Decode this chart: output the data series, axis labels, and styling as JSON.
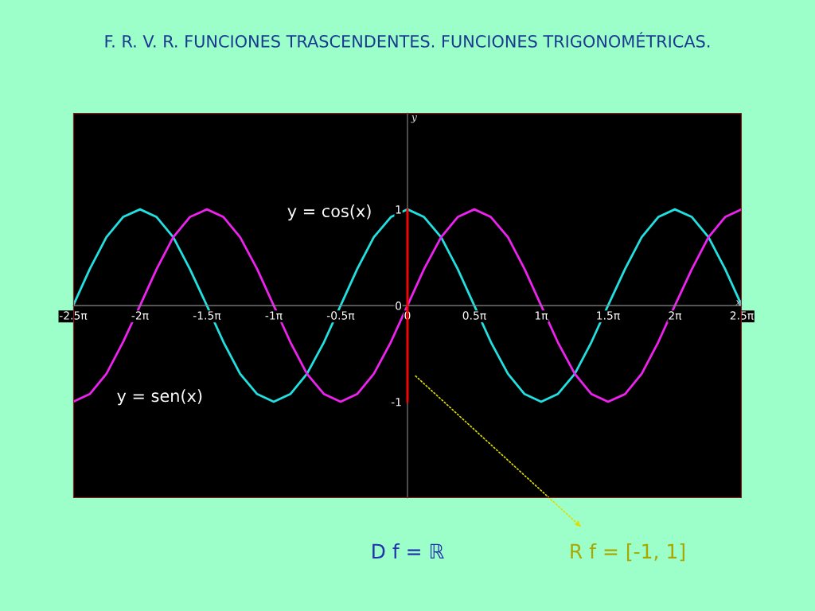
{
  "chart_data": {
    "type": "line",
    "title": "F. R. V. R. FUNCIONES TRASCENDENTES. FUNCIONES TRIGONOMÉTRICAS.",
    "xlabel": "x",
    "ylabel": "y",
    "x": [
      -7.85,
      -7.46,
      -7.07,
      -6.68,
      -6.28,
      -5.89,
      -5.5,
      -5.11,
      -4.71,
      -4.32,
      -3.93,
      -3.53,
      -3.14,
      -2.75,
      -2.36,
      -1.96,
      -1.57,
      -1.18,
      -0.79,
      -0.39,
      0,
      0.39,
      0.79,
      1.18,
      1.57,
      1.96,
      2.36,
      2.75,
      3.14,
      3.53,
      3.93,
      4.32,
      4.71,
      5.11,
      5.5,
      5.89,
      6.28,
      6.68,
      7.07,
      7.46,
      7.85
    ],
    "series": [
      {
        "name": "y = cos(x)",
        "color": "#22e0e0",
        "values": [
          0,
          0.38,
          0.71,
          0.92,
          1,
          0.92,
          0.71,
          0.38,
          0,
          -0.38,
          -0.71,
          -0.92,
          -1,
          -0.92,
          -0.71,
          -0.38,
          0,
          0.38,
          0.71,
          0.92,
          1,
          0.92,
          0.71,
          0.38,
          0,
          -0.38,
          -0.71,
          -0.92,
          -1,
          -0.92,
          -0.71,
          -0.38,
          0,
          0.38,
          0.71,
          0.92,
          1,
          0.92,
          0.71,
          0.38,
          0
        ]
      },
      {
        "name": "y = sen(x)",
        "color": "#ee22ee",
        "values": [
          -1,
          -0.92,
          -0.71,
          -0.38,
          0,
          0.38,
          0.71,
          0.92,
          1,
          0.92,
          0.71,
          0.38,
          0,
          -0.38,
          -0.71,
          -0.92,
          -1,
          -0.92,
          -0.71,
          -0.38,
          0,
          0.38,
          0.71,
          0.92,
          1,
          0.92,
          0.71,
          0.38,
          0,
          -0.38,
          -0.71,
          -0.92,
          -1,
          -0.92,
          -0.71,
          -0.38,
          0,
          0.38,
          0.71,
          0.92,
          1
        ]
      },
      {
        "type": "line",
        "color": "#ff0000",
        "x": [
          0,
          0
        ],
        "values": [
          -1,
          1
        ]
      }
    ],
    "xlim": [
      -7.85,
      7.85
    ],
    "ylim": [
      -2,
      2
    ],
    "xticks": [
      {
        "value": -7.85,
        "label": "-2.5π"
      },
      {
        "value": -6.28,
        "label": "-2π"
      },
      {
        "value": -4.71,
        "label": "-1.5π"
      },
      {
        "value": -3.14,
        "label": "-1π"
      },
      {
        "value": -1.57,
        "label": "-0.5π"
      },
      0,
      {
        "value": 1.57,
        "label": "0.5π"
      },
      {
        "value": 3.14,
        "label": "1π"
      },
      {
        "value": 4.71,
        "label": "1.5π"
      },
      {
        "value": 6.28,
        "label": "2π"
      },
      {
        "value": 7.85,
        "label": "2.5π"
      }
    ],
    "yticks": [
      {
        "value": -1,
        "label": "-1"
      },
      0,
      1
    ],
    "grid": false,
    "legend": false,
    "marker": "none",
    "line_style": "solid",
    "annotations": [
      "D f = ℝ",
      "R f = [-1, 1]"
    ]
  }
}
